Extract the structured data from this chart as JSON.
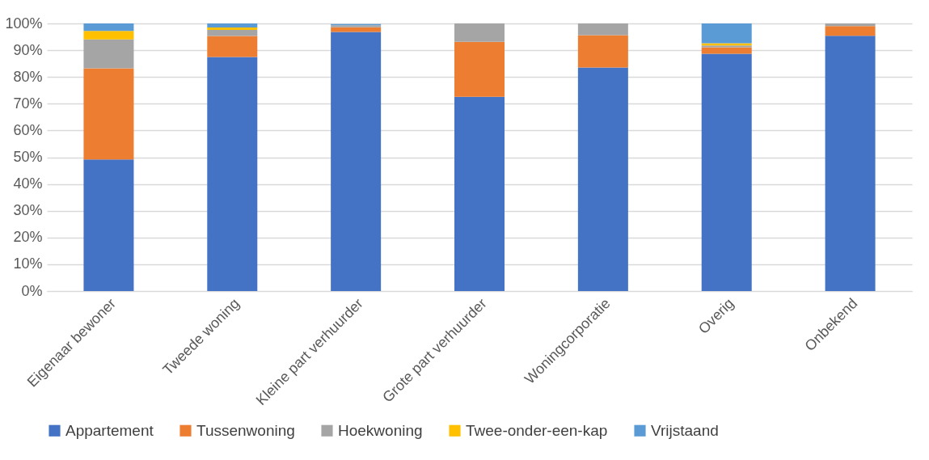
{
  "chart_data": {
    "type": "bar",
    "stacked": true,
    "categories": [
      "Eigenaar bewoner",
      "Tweede woning",
      "Kleine part verhuurder",
      "Grote part verhuurder",
      "Woningcorporatie",
      "Overig",
      "Onbekend"
    ],
    "series": [
      {
        "name": "Appartement",
        "color": "#4472c4",
        "values": [
          49.2,
          87.5,
          96.8,
          72.6,
          83.5,
          88.7,
          95.4
        ]
      },
      {
        "name": "Tussenwoning",
        "color": "#ed7d31",
        "values": [
          34,
          7.8,
          1.8,
          20.5,
          12.1,
          2.4,
          3.6
        ]
      },
      {
        "name": "Hoekwoning",
        "color": "#a5a5a5",
        "values": [
          10.8,
          2.3,
          0.7,
          6.9,
          4.4,
          0.7,
          1
        ]
      },
      {
        "name": "Twee-onder-een-kap",
        "color": "#ffc000",
        "values": [
          3.2,
          0.9,
          null,
          0,
          0,
          0.8,
          0
        ]
      },
      {
        "name": "Vrijstaand",
        "color": "#5b9bd5",
        "values": [
          2.8,
          1.5,
          0.5,
          0,
          0,
          7.4,
          0
        ]
      }
    ],
    "ylim": [
      0,
      100
    ],
    "yticks": [
      {
        "value": 0,
        "label": "0%"
      },
      {
        "value": 10,
        "label": "10%"
      },
      {
        "value": 20,
        "label": "20%"
      },
      {
        "value": 30,
        "label": "30%"
      },
      {
        "value": 40,
        "label": "40%"
      },
      {
        "value": 50,
        "label": "50%"
      },
      {
        "value": 60,
        "label": "60%"
      },
      {
        "value": 70,
        "label": "70%"
      },
      {
        "value": 80,
        "label": "80%"
      },
      {
        "value": 90,
        "label": "90%"
      },
      {
        "value": 100,
        "label": "100%"
      }
    ],
    "grid": "y",
    "legend": "bottom"
  }
}
